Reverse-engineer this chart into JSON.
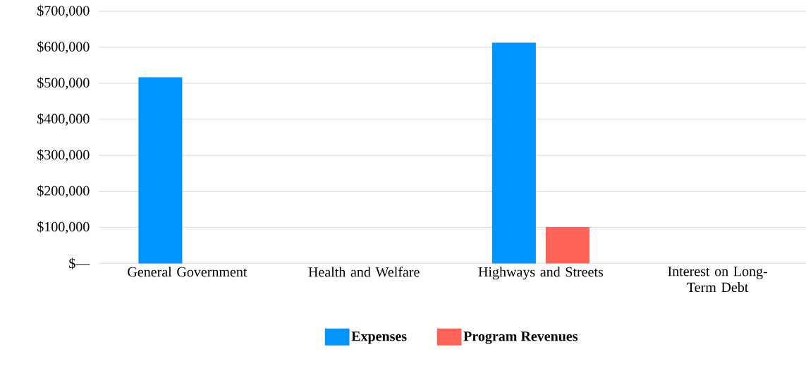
{
  "chart_data": {
    "type": "bar",
    "categories": [
      "General Government",
      "Health and Welfare",
      "Highways and Streets",
      "Interest on Long-Term Debt"
    ],
    "series": [
      {
        "name": "Expenses",
        "color": "#0094ff",
        "values": [
          517000,
          null,
          613000,
          null
        ]
      },
      {
        "name": "Program Revenues",
        "color": "#ff6257",
        "values": [
          null,
          null,
          101000,
          null
        ]
      }
    ],
    "ylim": [
      0,
      700000
    ],
    "yticks": [
      {
        "value": 0,
        "label": "$—"
      },
      {
        "value": 100000,
        "label": "$100,000"
      },
      {
        "value": 200000,
        "label": "$200,000"
      },
      {
        "value": 300000,
        "label": "$300,000"
      },
      {
        "value": 400000,
        "label": "$400,000"
      },
      {
        "value": 500000,
        "label": "$500,000"
      },
      {
        "value": 600000,
        "label": "$600,000"
      },
      {
        "value": 700000,
        "label": "$700,000"
      }
    ],
    "grid": "y",
    "legend": "bottom"
  }
}
